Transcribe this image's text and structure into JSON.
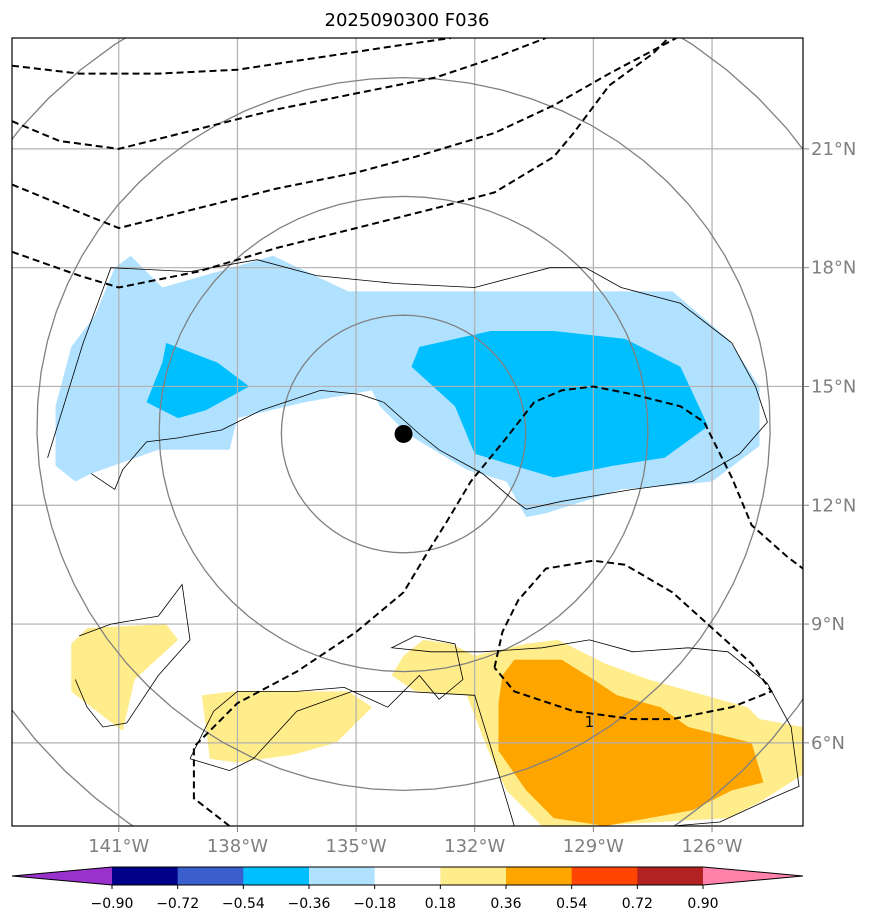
{
  "chart_data": {
    "type": "contour-map",
    "title": "2025090300 F036",
    "lon_ticks": [
      {
        "value": -141,
        "label": "141°W"
      },
      {
        "value": -138,
        "label": "138°W"
      },
      {
        "value": -135,
        "label": "135°W"
      },
      {
        "value": -132,
        "label": "132°W"
      },
      {
        "value": -129,
        "label": "129°W"
      },
      {
        "value": -126,
        "label": "126°W"
      }
    ],
    "lat_ticks": [
      {
        "value": 21,
        "label": "21°N"
      },
      {
        "value": 18,
        "label": "18°N"
      },
      {
        "value": 15,
        "label": "15°N"
      },
      {
        "value": 12,
        "label": "12°N"
      },
      {
        "value": 9,
        "label": "9°N"
      },
      {
        "value": 6,
        "label": "6°N"
      }
    ],
    "lon_range": [
      -143.7,
      -123.7
    ],
    "lat_range": [
      3.9,
      23.8
    ],
    "grid": true,
    "center_marker": {
      "lon": -133.8,
      "lat": 13.8
    },
    "range_rings_deg": [
      3,
      6,
      9,
      12
    ],
    "dashed_contour_label": "1",
    "colorbar": {
      "levels": [
        "−0.90",
        "−0.72",
        "−0.54",
        "−0.36",
        "−0.18",
        "0.18",
        "0.36",
        "0.54",
        "0.72",
        "0.90"
      ],
      "colors": [
        "#9932cc",
        "#00008b",
        "#3a5fcd",
        "#00bfff",
        "#b0e2ff",
        "#ffffff",
        "#ffec8b",
        "#ffa500",
        "#ff4500",
        "#b22222",
        "#ff82ab"
      ]
    },
    "shaded_regions": [
      {
        "name": "light-blue-band",
        "class": "-0.36 to -0.18",
        "color": "#b0e2ff",
        "points": [
          [
            -142.6,
            13
          ],
          [
            -142.6,
            14.5
          ],
          [
            -142.2,
            16
          ],
          [
            -141.6,
            16.8
          ],
          [
            -141.1,
            18
          ],
          [
            -140.7,
            18.3
          ],
          [
            -139.9,
            17.5
          ],
          [
            -137.1,
            18.3
          ],
          [
            -135.2,
            17.4
          ],
          [
            -134,
            17.4
          ],
          [
            -132,
            17.4
          ],
          [
            -127,
            17.4
          ],
          [
            -125.6,
            16.2
          ],
          [
            -124.8,
            15
          ],
          [
            -124.8,
            13.5
          ],
          [
            -126,
            12.6
          ],
          [
            -127,
            12.5
          ],
          [
            -128.3,
            12.4
          ],
          [
            -130.2,
            11.8
          ],
          [
            -130.7,
            11.7
          ],
          [
            -131.2,
            12.6
          ],
          [
            -132.2,
            12.9
          ],
          [
            -133.7,
            13.8
          ],
          [
            -134.4,
            14.5
          ],
          [
            -134.6,
            14.9
          ],
          [
            -136.3,
            14.6
          ],
          [
            -138,
            14.2
          ],
          [
            -138.2,
            13.4
          ],
          [
            -140,
            13.4
          ],
          [
            -141.7,
            12.8
          ],
          [
            -142.1,
            12.6
          ]
        ]
      },
      {
        "name": "blue-core-west",
        "class": "-0.54 to -0.36",
        "color": "#00bfff",
        "points": [
          [
            -139.8,
            16.1
          ],
          [
            -138.5,
            15.6
          ],
          [
            -137.7,
            15
          ],
          [
            -138.8,
            14.4
          ],
          [
            -139.5,
            14.2
          ],
          [
            -140.3,
            14.6
          ],
          [
            -139.9,
            15.6
          ]
        ]
      },
      {
        "name": "blue-core-east",
        "class": "-0.54 to -0.36",
        "color": "#00bfff",
        "points": [
          [
            -133.4,
            16
          ],
          [
            -131.6,
            16.4
          ],
          [
            -130,
            16.4
          ],
          [
            -128.2,
            16.2
          ],
          [
            -126.8,
            15.5
          ],
          [
            -126.1,
            14
          ],
          [
            -127.2,
            13.2
          ],
          [
            -128.5,
            13
          ],
          [
            -130,
            12.7
          ],
          [
            -132,
            13.3
          ],
          [
            -132.5,
            14.5
          ],
          [
            -133.6,
            15.5
          ]
        ]
      },
      {
        "name": "yellow-west-small",
        "class": "0.18 to 0.36",
        "color": "#ffec8b",
        "points": [
          [
            -142.2,
            8.5
          ],
          [
            -141.8,
            8.9
          ],
          [
            -139.8,
            9
          ],
          [
            -139.5,
            8.6
          ],
          [
            -140.6,
            7.6
          ],
          [
            -140.9,
            6.3
          ],
          [
            -141.3,
            6.6
          ],
          [
            -142.2,
            7.3
          ]
        ]
      },
      {
        "name": "yellow-mid-small",
        "class": "0.18 to 0.36",
        "color": "#ffec8b",
        "points": [
          [
            -138.9,
            7.2
          ],
          [
            -138.1,
            7.3
          ],
          [
            -135.2,
            7.3
          ],
          [
            -134.6,
            6.9
          ],
          [
            -135.5,
            6
          ],
          [
            -136.6,
            5.7
          ],
          [
            -138,
            5.5
          ],
          [
            -138.7,
            5.6
          ]
        ]
      },
      {
        "name": "yellow-east-large",
        "class": "0.18 to 0.36",
        "color": "#ffec8b",
        "points": [
          [
            -134.1,
            7.7
          ],
          [
            -133.8,
            8.2
          ],
          [
            -133.3,
            8.6
          ],
          [
            -132.6,
            8.5
          ],
          [
            -132,
            8.2
          ],
          [
            -130.7,
            8.5
          ],
          [
            -129.9,
            8.6
          ],
          [
            -128.7,
            8
          ],
          [
            -127.6,
            7.6
          ],
          [
            -126.9,
            7.4
          ],
          [
            -125.1,
            6.9
          ],
          [
            -124.8,
            6.6
          ],
          [
            -123.7,
            6.4
          ],
          [
            -123.7,
            5.2
          ],
          [
            -124.8,
            4.5
          ],
          [
            -125.6,
            4.1
          ],
          [
            -129,
            3.9
          ],
          [
            -130.3,
            3.9
          ],
          [
            -131.2,
            4.8
          ],
          [
            -131.7,
            5.9
          ],
          [
            -132.2,
            7.2
          ],
          [
            -133.5,
            7.3
          ]
        ]
      },
      {
        "name": "orange-core",
        "class": "0.36 to 0.54",
        "color": "#ffa500",
        "points": [
          [
            -131.3,
            7.7
          ],
          [
            -131,
            8.1
          ],
          [
            -129.8,
            8.1
          ],
          [
            -129,
            7.6
          ],
          [
            -128.4,
            7.2
          ],
          [
            -127.3,
            6.9
          ],
          [
            -126.6,
            6.4
          ],
          [
            -125,
            6
          ],
          [
            -124.7,
            5
          ],
          [
            -125.5,
            4.8
          ],
          [
            -126.5,
            4.3
          ],
          [
            -128.7,
            3.9
          ],
          [
            -130,
            4.1
          ],
          [
            -130.7,
            4.8
          ],
          [
            -131.4,
            5.8
          ],
          [
            -131.4,
            7
          ]
        ]
      }
    ],
    "dashed_lines": [
      {
        "points": [
          [
            -143.7,
            23.1
          ],
          [
            -142,
            22.9
          ],
          [
            -140,
            22.9
          ],
          [
            -138,
            23
          ],
          [
            -136,
            23.3
          ],
          [
            -134,
            23.6
          ],
          [
            -132.6,
            23.8
          ]
        ]
      },
      {
        "points": [
          [
            -143.7,
            21.7
          ],
          [
            -142.5,
            21.2
          ],
          [
            -141,
            21
          ],
          [
            -139,
            21.5
          ],
          [
            -137,
            22
          ],
          [
            -135,
            22.4
          ],
          [
            -133,
            22.8
          ],
          [
            -131.5,
            23.3
          ],
          [
            -130.2,
            23.8
          ]
        ]
      },
      {
        "points": [
          [
            -143.7,
            20.1
          ],
          [
            -142,
            19.4
          ],
          [
            -141,
            19
          ],
          [
            -139,
            19.5
          ],
          [
            -137,
            20
          ],
          [
            -135,
            20.4
          ],
          [
            -133.5,
            20.8
          ],
          [
            -131.5,
            21.4
          ],
          [
            -130,
            22.1
          ],
          [
            -128.6,
            22.9
          ],
          [
            -126.9,
            23.8
          ]
        ]
      },
      {
        "points": [
          [
            -143.7,
            18.4
          ],
          [
            -142,
            17.8
          ],
          [
            -141,
            17.5
          ],
          [
            -139,
            17.9
          ],
          [
            -137,
            18.5
          ],
          [
            -135,
            19
          ],
          [
            -133,
            19.5
          ],
          [
            -131.5,
            19.9
          ],
          [
            -130,
            20.8
          ],
          [
            -129.5,
            21.4
          ],
          [
            -128.6,
            22.6
          ],
          [
            -127.5,
            23.4
          ],
          [
            -127.1,
            23.8
          ]
        ]
      },
      {
        "points": [
          [
            -138.2,
            3.9
          ],
          [
            -139.1,
            4.6
          ],
          [
            -139.1,
            5.9
          ],
          [
            -138,
            7
          ],
          [
            -136.5,
            7.8
          ],
          [
            -135,
            8.8
          ],
          [
            -133.8,
            9.8
          ],
          [
            -133.2,
            10.8
          ],
          [
            -132.7,
            11.6
          ],
          [
            -132.1,
            12.6
          ],
          [
            -131.2,
            13.7
          ],
          [
            -130.5,
            14.6
          ],
          [
            -129.8,
            14.9
          ],
          [
            -129,
            15
          ],
          [
            -128,
            14.8
          ],
          [
            -126.8,
            14.5
          ],
          [
            -126.2,
            14.1
          ],
          [
            -125.5,
            12.7
          ],
          [
            -125,
            11.5
          ],
          [
            -124.1,
            10.7
          ],
          [
            -123.7,
            10.4
          ]
        ]
      },
      {
        "points": [
          [
            -131.5,
            7.9
          ],
          [
            -131.3,
            8.8
          ],
          [
            -130.9,
            9.6
          ],
          [
            -130.2,
            10.4
          ],
          [
            -129,
            10.6
          ],
          [
            -128.2,
            10.5
          ],
          [
            -127,
            9.8
          ],
          [
            -126,
            8.9
          ],
          [
            -125,
            8
          ],
          [
            -124.5,
            7.3
          ],
          [
            -125.5,
            6.9
          ],
          [
            -127,
            6.6
          ],
          [
            -128,
            6.6
          ],
          [
            -129.5,
            6.8
          ],
          [
            -131,
            7.3
          ],
          [
            -131.5,
            7.9
          ]
        ]
      }
    ],
    "coast_lines": [
      {
        "points": [
          [
            -142.8,
            13.2
          ],
          [
            -141.9,
            16.1
          ],
          [
            -141.2,
            18
          ],
          [
            -139.2,
            17.9
          ],
          [
            -137.5,
            18.2
          ],
          [
            -136,
            17.8
          ],
          [
            -134,
            17.6
          ],
          [
            -132,
            17.5
          ],
          [
            -130.1,
            18
          ],
          [
            -129.2,
            18
          ],
          [
            -128.3,
            17.5
          ],
          [
            -126.8,
            17.1
          ],
          [
            -125.5,
            16.1
          ],
          [
            -124.9,
            15
          ],
          [
            -124.6,
            14.1
          ],
          [
            -125.3,
            13.3
          ],
          [
            -126.5,
            12.6
          ],
          [
            -128,
            12.4
          ],
          [
            -129.8,
            12.1
          ],
          [
            -130.7,
            11.9
          ],
          [
            -131.1,
            12.2
          ],
          [
            -131.8,
            12.8
          ],
          [
            -132.9,
            13.4
          ],
          [
            -133.4,
            13.8
          ],
          [
            -134.3,
            14.6
          ],
          [
            -134.9,
            14.8
          ],
          [
            -135.9,
            14.9
          ],
          [
            -137.4,
            14.4
          ],
          [
            -138.4,
            13.9
          ],
          [
            -139.5,
            13.7
          ],
          [
            -140.3,
            13.6
          ],
          [
            -140.9,
            12.9
          ],
          [
            -141.1,
            12.4
          ],
          [
            -141.7,
            12.8
          ]
        ]
      },
      {
        "points": [
          [
            -142,
            8.7
          ],
          [
            -141.2,
            9
          ],
          [
            -140,
            9.2
          ],
          [
            -139.4,
            10
          ],
          [
            -139.2,
            8.6
          ],
          [
            -140,
            7.7
          ],
          [
            -140.8,
            6.5
          ],
          [
            -141.4,
            6.4
          ],
          [
            -141.8,
            6.9
          ],
          [
            -142.1,
            7.6
          ]
        ]
      },
      {
        "points": [
          [
            -139.2,
            5.6
          ],
          [
            -138.6,
            6.8
          ],
          [
            -138,
            7.3
          ],
          [
            -136.5,
            7.3
          ],
          [
            -135.3,
            7.4
          ],
          [
            -134.2,
            6.9
          ],
          [
            -133.4,
            7.7
          ],
          [
            -132.9,
            7.1
          ],
          [
            -132.3,
            7.6
          ],
          [
            -132.5,
            8.5
          ],
          [
            -133.5,
            8.7
          ],
          [
            -134.1,
            8.4
          ],
          [
            -133.1,
            8.3
          ],
          [
            -131.8,
            8.3
          ],
          [
            -130.3,
            8.4
          ],
          [
            -129.1,
            8.6
          ],
          [
            -128,
            8.3
          ],
          [
            -126.6,
            8.4
          ],
          [
            -125.6,
            8.3
          ],
          [
            -124.6,
            7.5
          ],
          [
            -124,
            6.4
          ],
          [
            -123.8,
            4.9
          ],
          [
            -124.5,
            4.6
          ],
          [
            -125.8,
            4
          ],
          [
            -127,
            3.9
          ],
          [
            -129.5,
            3.9
          ],
          [
            -131,
            3.9
          ],
          [
            -131.6,
            5.9
          ],
          [
            -132,
            7.2
          ],
          [
            -133.8,
            7.3
          ],
          [
            -135.1,
            7.3
          ],
          [
            -136.5,
            6.8
          ],
          [
            -137.6,
            5.6
          ],
          [
            -138.2,
            5.3
          ],
          [
            -139.2,
            5.6
          ]
        ]
      }
    ]
  }
}
